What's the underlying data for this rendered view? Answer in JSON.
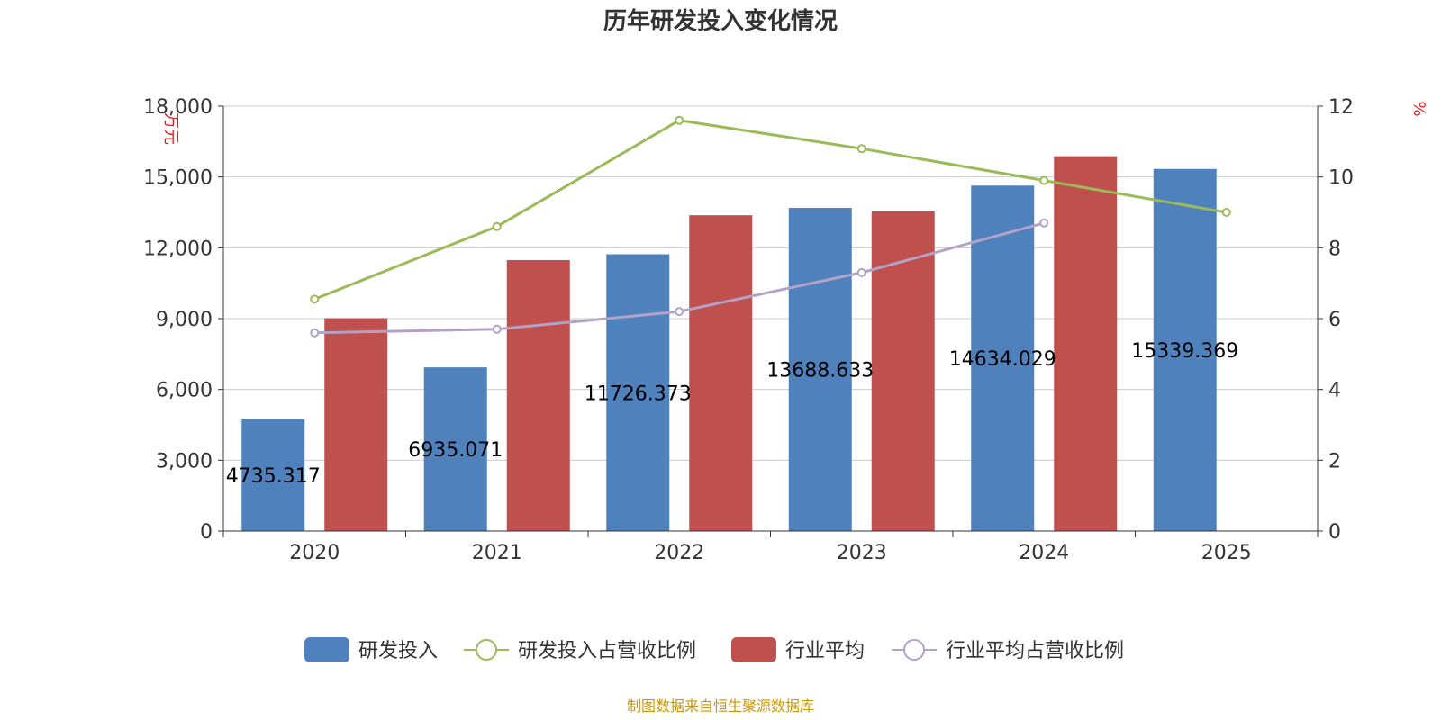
{
  "chart_data": {
    "type": "bar",
    "title": "历年研发投入变化情况",
    "categories": [
      "2020",
      "2021",
      "2022",
      "2023",
      "2024",
      "2025"
    ],
    "y_left": {
      "unit": "万元",
      "range": [
        0,
        18000
      ],
      "ticks": [
        "0",
        "3,000",
        "6,000",
        "9,000",
        "12,000",
        "15,000",
        "18,000"
      ]
    },
    "y_right": {
      "unit": "%",
      "range": [
        0,
        12
      ],
      "ticks": [
        "0",
        "2",
        "4",
        "6",
        "8",
        "10",
        "12"
      ]
    },
    "series": [
      {
        "name": "研发投入",
        "kind": "bar",
        "axis": "left",
        "color": "#4f81bd",
        "values": [
          4735.317,
          6935.071,
          11726.373,
          13688.633,
          14634.029,
          15339.369
        ],
        "labels": [
          "4735.317",
          "6935.071",
          "11726.373",
          "13688.633",
          "14634.029",
          "15339.369"
        ]
      },
      {
        "name": "研发投入占营收比例",
        "kind": "line",
        "axis": "right",
        "color": "#9bbb59",
        "values": [
          6.55,
          8.6,
          11.6,
          10.8,
          9.9,
          9.0
        ]
      },
      {
        "name": "行业平均",
        "kind": "bar",
        "axis": "left",
        "color": "#c0504d",
        "values": [
          9020,
          11480,
          13380,
          13540,
          15880,
          null
        ]
      },
      {
        "name": "行业平均占营收比例",
        "kind": "line",
        "axis": "right",
        "color": "#b3a2c7",
        "values": [
          5.6,
          5.7,
          6.2,
          7.3,
          8.7,
          null
        ]
      }
    ],
    "legend_position": "bottom",
    "source": "制图数据来自恒生聚源数据库"
  }
}
